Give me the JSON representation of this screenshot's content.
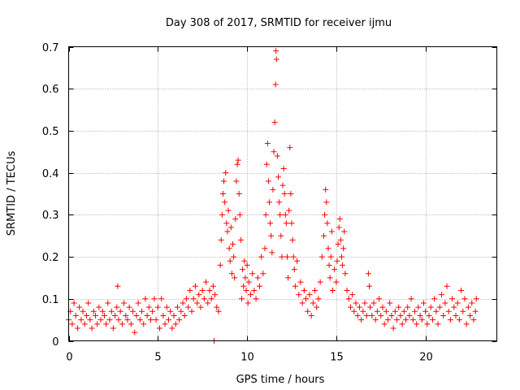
{
  "chart_data": {
    "type": "scatter",
    "title": "Day 308 of 2017, SRMTID for receiver ijmu",
    "xlabel": "GPS time / hours",
    "ylabel": "SRMTID / TECUs",
    "xlim": [
      0,
      24
    ],
    "ylim": [
      0,
      0.7
    ],
    "xticks": [
      0,
      5,
      10,
      15,
      20
    ],
    "yticks": [
      0,
      0.1,
      0.2,
      0.3,
      0.4,
      0.5,
      0.6,
      0.7
    ],
    "xtick_labels": [
      "0",
      "5",
      "10",
      "15",
      "20"
    ],
    "ytick_labels": [
      "0",
      "0.1",
      "0.2",
      "0.3",
      "0.4",
      "0.5",
      "0.6",
      "0.7"
    ],
    "grid": true,
    "marker": "plus",
    "color": "#ff0000",
    "series": [
      {
        "name": "SRMTID",
        "points": [
          [
            0.0,
            0.05
          ],
          [
            0.1,
            0.07
          ],
          [
            0.2,
            0.04
          ],
          [
            0.3,
            0.09
          ],
          [
            0.4,
            0.06
          ],
          [
            0.5,
            0.03
          ],
          [
            0.6,
            0.08
          ],
          [
            0.7,
            0.05
          ],
          [
            0.8,
            0.07
          ],
          [
            0.9,
            0.04
          ],
          [
            1.0,
            0.06
          ],
          [
            1.1,
            0.09
          ],
          [
            1.2,
            0.05
          ],
          [
            1.3,
            0.03
          ],
          [
            1.4,
            0.07
          ],
          [
            1.5,
            0.06
          ],
          [
            1.6,
            0.04
          ],
          [
            1.7,
            0.08
          ],
          [
            1.8,
            0.05
          ],
          [
            1.9,
            0.07
          ],
          [
            2.0,
            0.06
          ],
          [
            2.1,
            0.04
          ],
          [
            2.2,
            0.09
          ],
          [
            2.3,
            0.05
          ],
          [
            2.4,
            0.07
          ],
          [
            2.5,
            0.03
          ],
          [
            2.6,
            0.06
          ],
          [
            2.7,
            0.08
          ],
          [
            2.75,
            0.13
          ],
          [
            2.8,
            0.05
          ],
          [
            2.9,
            0.07
          ],
          [
            3.0,
            0.04
          ],
          [
            3.1,
            0.09
          ],
          [
            3.2,
            0.06
          ],
          [
            3.3,
            0.05
          ],
          [
            3.4,
            0.08
          ],
          [
            3.5,
            0.04
          ],
          [
            3.6,
            0.07
          ],
          [
            3.7,
            0.02
          ],
          [
            3.8,
            0.06
          ],
          [
            3.9,
            0.09
          ],
          [
            4.0,
            0.05
          ],
          [
            4.1,
            0.07
          ],
          [
            4.2,
            0.04
          ],
          [
            4.3,
            0.1
          ],
          [
            4.4,
            0.06
          ],
          [
            4.5,
            0.08
          ],
          [
            4.6,
            0.05
          ],
          [
            4.7,
            0.07
          ],
          [
            4.8,
            0.1
          ],
          [
            4.9,
            0.05
          ],
          [
            5.0,
            0.08
          ],
          [
            5.1,
            0.03
          ],
          [
            5.2,
            0.1
          ],
          [
            5.3,
            0.06
          ],
          [
            5.4,
            0.04
          ],
          [
            5.5,
            0.08
          ],
          [
            5.6,
            0.05
          ],
          [
            5.7,
            0.07
          ],
          [
            5.8,
            0.03
          ],
          [
            5.9,
            0.06
          ],
          [
            6.0,
            0.04
          ],
          [
            6.1,
            0.08
          ],
          [
            6.2,
            0.05
          ],
          [
            6.3,
            0.07
          ],
          [
            6.4,
            0.09
          ],
          [
            6.5,
            0.06
          ],
          [
            6.6,
            0.1
          ],
          [
            6.7,
            0.08
          ],
          [
            6.8,
            0.12
          ],
          [
            6.9,
            0.07
          ],
          [
            7.0,
            0.1
          ],
          [
            7.1,
            0.13
          ],
          [
            7.2,
            0.09
          ],
          [
            7.3,
            0.11
          ],
          [
            7.4,
            0.08
          ],
          [
            7.5,
            0.12
          ],
          [
            7.6,
            0.1
          ],
          [
            7.7,
            0.14
          ],
          [
            7.8,
            0.09
          ],
          [
            7.9,
            0.12
          ],
          [
            8.0,
            0.1
          ],
          [
            8.1,
            0.13
          ],
          [
            8.15,
            0.0
          ],
          [
            8.2,
            0.11
          ],
          [
            8.3,
            0.08
          ],
          [
            8.4,
            0.07
          ],
          [
            8.5,
            0.18
          ],
          [
            8.55,
            0.24
          ],
          [
            8.6,
            0.3
          ],
          [
            8.65,
            0.35
          ],
          [
            8.7,
            0.38
          ],
          [
            8.75,
            0.33
          ],
          [
            8.8,
            0.4
          ],
          [
            8.85,
            0.28
          ],
          [
            8.9,
            0.26
          ],
          [
            8.95,
            0.31
          ],
          [
            9.0,
            0.22
          ],
          [
            9.05,
            0.19
          ],
          [
            9.1,
            0.27
          ],
          [
            9.15,
            0.16
          ],
          [
            9.2,
            0.23
          ],
          [
            9.25,
            0.2
          ],
          [
            9.3,
            0.15
          ],
          [
            9.35,
            0.29
          ],
          [
            9.4,
            0.38
          ],
          [
            9.45,
            0.42
          ],
          [
            9.5,
            0.43
          ],
          [
            9.55,
            0.35
          ],
          [
            9.6,
            0.3
          ],
          [
            9.65,
            0.24
          ],
          [
            9.7,
            0.1
          ],
          [
            9.75,
            0.17
          ],
          [
            9.8,
            0.13
          ],
          [
            9.85,
            0.19
          ],
          [
            9.9,
            0.15
          ],
          [
            9.95,
            0.12
          ],
          [
            10.0,
            0.18
          ],
          [
            10.05,
            0.09
          ],
          [
            10.1,
            0.14
          ],
          [
            10.2,
            0.11
          ],
          [
            10.3,
            0.16
          ],
          [
            10.4,
            0.12
          ],
          [
            10.5,
            0.1
          ],
          [
            10.6,
            0.15
          ],
          [
            10.7,
            0.13
          ],
          [
            10.8,
            0.2
          ],
          [
            10.9,
            0.16
          ],
          [
            11.0,
            0.22
          ],
          [
            11.05,
            0.3
          ],
          [
            11.1,
            0.42
          ],
          [
            11.15,
            0.47
          ],
          [
            11.2,
            0.38
          ],
          [
            11.25,
            0.33
          ],
          [
            11.3,
            0.28
          ],
          [
            11.35,
            0.25
          ],
          [
            11.4,
            0.21
          ],
          [
            11.45,
            0.36
          ],
          [
            11.5,
            0.45
          ],
          [
            11.55,
            0.52
          ],
          [
            11.6,
            0.61
          ],
          [
            11.62,
            0.69
          ],
          [
            11.65,
            0.67
          ],
          [
            11.7,
            0.44
          ],
          [
            11.75,
            0.39
          ],
          [
            11.8,
            0.33
          ],
          [
            11.85,
            0.3
          ],
          [
            11.9,
            0.25
          ],
          [
            11.95,
            0.2
          ],
          [
            12.0,
            0.37
          ],
          [
            12.05,
            0.41
          ],
          [
            12.1,
            0.35
          ],
          [
            12.15,
            0.3
          ],
          [
            12.2,
            0.28
          ],
          [
            12.25,
            0.2
          ],
          [
            12.3,
            0.15
          ],
          [
            12.35,
            0.31
          ],
          [
            12.4,
            0.46
          ],
          [
            12.45,
            0.35
          ],
          [
            12.5,
            0.28
          ],
          [
            12.55,
            0.24
          ],
          [
            12.6,
            0.2
          ],
          [
            12.65,
            0.17
          ],
          [
            12.7,
            0.13
          ],
          [
            12.8,
            0.19
          ],
          [
            12.9,
            0.11
          ],
          [
            13.0,
            0.14
          ],
          [
            13.1,
            0.09
          ],
          [
            13.2,
            0.12
          ],
          [
            13.3,
            0.1
          ],
          [
            13.4,
            0.07
          ],
          [
            13.5,
            0.11
          ],
          [
            13.6,
            0.06
          ],
          [
            13.7,
            0.09
          ],
          [
            13.8,
            0.12
          ],
          [
            13.9,
            0.08
          ],
          [
            14.0,
            0.1
          ],
          [
            14.1,
            0.14
          ],
          [
            14.2,
            0.2
          ],
          [
            14.3,
            0.25
          ],
          [
            14.35,
            0.3
          ],
          [
            14.4,
            0.36
          ],
          [
            14.45,
            0.33
          ],
          [
            14.5,
            0.28
          ],
          [
            14.55,
            0.22
          ],
          [
            14.6,
            0.18
          ],
          [
            14.65,
            0.15
          ],
          [
            14.7,
            0.2
          ],
          [
            14.75,
            0.26
          ],
          [
            14.8,
            0.12
          ],
          [
            14.9,
            0.17
          ],
          [
            15.0,
            0.14
          ],
          [
            15.05,
            0.19
          ],
          [
            15.1,
            0.23
          ],
          [
            15.15,
            0.27
          ],
          [
            15.2,
            0.29
          ],
          [
            15.25,
            0.24
          ],
          [
            15.3,
            0.2
          ],
          [
            15.35,
            0.18
          ],
          [
            15.4,
            0.22
          ],
          [
            15.45,
            0.26
          ],
          [
            15.5,
            0.16
          ],
          [
            15.6,
            0.12
          ],
          [
            15.7,
            0.1
          ],
          [
            15.8,
            0.08
          ],
          [
            15.9,
            0.11
          ],
          [
            16.0,
            0.07
          ],
          [
            16.1,
            0.09
          ],
          [
            16.2,
            0.06
          ],
          [
            16.3,
            0.08
          ],
          [
            16.4,
            0.05
          ],
          [
            16.5,
            0.07
          ],
          [
            16.6,
            0.09
          ],
          [
            16.7,
            0.06
          ],
          [
            16.8,
            0.16
          ],
          [
            16.85,
            0.13
          ],
          [
            16.9,
            0.08
          ],
          [
            17.0,
            0.06
          ],
          [
            17.1,
            0.09
          ],
          [
            17.2,
            0.05
          ],
          [
            17.3,
            0.07
          ],
          [
            17.4,
            0.1
          ],
          [
            17.5,
            0.06
          ],
          [
            17.6,
            0.08
          ],
          [
            17.7,
            0.04
          ],
          [
            17.8,
            0.07
          ],
          [
            17.9,
            0.05
          ],
          [
            18.0,
            0.09
          ],
          [
            18.1,
            0.06
          ],
          [
            18.2,
            0.03
          ],
          [
            18.3,
            0.07
          ],
          [
            18.4,
            0.05
          ],
          [
            18.5,
            0.08
          ],
          [
            18.6,
            0.06
          ],
          [
            18.7,
            0.04
          ],
          [
            18.8,
            0.07
          ],
          [
            18.9,
            0.05
          ],
          [
            19.0,
            0.08
          ],
          [
            19.1,
            0.06
          ],
          [
            19.2,
            0.1
          ],
          [
            19.3,
            0.05
          ],
          [
            19.4,
            0.07
          ],
          [
            19.5,
            0.04
          ],
          [
            19.6,
            0.08
          ],
          [
            19.7,
            0.06
          ],
          [
            19.8,
            0.05
          ],
          [
            19.9,
            0.09
          ],
          [
            20.0,
            0.07
          ],
          [
            20.1,
            0.04
          ],
          [
            20.2,
            0.06
          ],
          [
            20.3,
            0.08
          ],
          [
            20.4,
            0.05
          ],
          [
            20.5,
            0.1
          ],
          [
            20.6,
            0.07
          ],
          [
            20.7,
            0.04
          ],
          [
            20.8,
            0.08
          ],
          [
            20.9,
            0.11
          ],
          [
            21.0,
            0.06
          ],
          [
            21.1,
            0.09
          ],
          [
            21.2,
            0.13
          ],
          [
            21.3,
            0.07
          ],
          [
            21.4,
            0.05
          ],
          [
            21.5,
            0.1
          ],
          [
            21.6,
            0.08
          ],
          [
            21.7,
            0.06
          ],
          [
            21.8,
            0.09
          ],
          [
            21.9,
            0.05
          ],
          [
            22.0,
            0.12
          ],
          [
            22.1,
            0.07
          ],
          [
            22.2,
            0.1
          ],
          [
            22.3,
            0.04
          ],
          [
            22.4,
            0.08
          ],
          [
            22.5,
            0.06
          ],
          [
            22.6,
            0.09
          ],
          [
            22.7,
            0.05
          ],
          [
            22.8,
            0.07
          ],
          [
            22.85,
            0.1
          ]
        ]
      }
    ]
  }
}
